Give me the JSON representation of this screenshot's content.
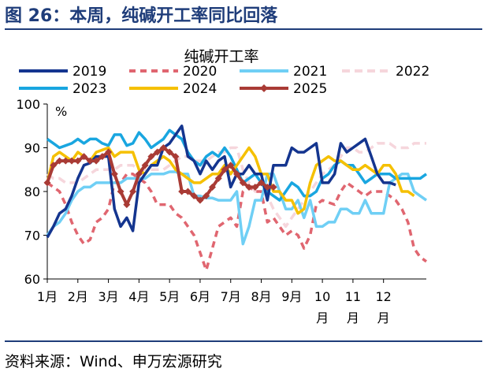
{
  "header": {
    "figure_title": "图 26：本周，纯碱开工率同比回落"
  },
  "footer": {
    "source": "资料来源：Wind、申万宏源研究"
  },
  "chart_data": {
    "type": "line",
    "title": "纯碱开工率",
    "unit": "%",
    "ylim": [
      60,
      100
    ],
    "yticks": [
      60,
      70,
      80,
      90,
      100
    ],
    "xlim": [
      0,
      12.4
    ],
    "xticks": [
      {
        "pos": 0,
        "label": "1月"
      },
      {
        "pos": 1,
        "label": "2月"
      },
      {
        "pos": 2,
        "label": "3月"
      },
      {
        "pos": 3,
        "label": "4月"
      },
      {
        "pos": 4,
        "label": "5月"
      },
      {
        "pos": 5,
        "label": "6月"
      },
      {
        "pos": 6,
        "label": "7月"
      },
      {
        "pos": 7,
        "label": "8月"
      },
      {
        "pos": 8,
        "label": "9月"
      },
      {
        "pos": 9,
        "label": "10月"
      },
      {
        "pos": 10,
        "label": "11月"
      },
      {
        "pos": 11,
        "label": "12月"
      }
    ],
    "grid": false,
    "legend_position": "top",
    "series": [
      {
        "name": "2019",
        "color": "#14358f",
        "dash": "solid",
        "width": 3.5,
        "x": [
          0.0,
          0.2,
          0.4,
          0.6,
          0.8,
          1.0,
          1.2,
          1.4,
          1.6,
          1.8,
          2.0,
          2.2,
          2.4,
          2.6,
          2.8,
          3.0,
          3.2,
          3.4,
          3.6,
          3.8,
          4.0,
          4.2,
          4.4,
          4.6,
          4.8,
          5.0,
          5.2,
          5.4,
          5.6,
          5.8,
          6.0,
          6.2,
          6.4,
          6.6,
          6.8,
          7.0,
          7.2,
          7.4,
          7.6,
          7.8,
          8.0,
          8.2,
          8.4,
          8.6,
          8.8,
          9.0,
          9.2,
          9.4,
          9.6,
          9.8,
          10.0,
          10.2,
          10.4,
          10.6,
          10.8,
          11.0,
          11.2,
          11.4
        ],
        "y": [
          69.5,
          72,
          75,
          76,
          79,
          83,
          86,
          86.5,
          88,
          88,
          88,
          76,
          72,
          74,
          71,
          82,
          84,
          86,
          86,
          90,
          91,
          93,
          95,
          88,
          87,
          84,
          87,
          85,
          87,
          88,
          81,
          84,
          84,
          86,
          84,
          84,
          78,
          86,
          86,
          86,
          90,
          89,
          89,
          90,
          91,
          82,
          82,
          84,
          91,
          89,
          90,
          91,
          92,
          88,
          84,
          82,
          82,
          81.5
        ]
      },
      {
        "name": "2020",
        "color": "#e06670",
        "dash": "8,6",
        "width": 3.5,
        "x": [
          0.0,
          0.2,
          0.4,
          0.6,
          0.8,
          1.0,
          1.2,
          1.4,
          1.6,
          1.8,
          2.0,
          2.2,
          2.4,
          2.6,
          2.8,
          3.0,
          3.2,
          3.4,
          3.6,
          3.8,
          4.0,
          4.2,
          4.4,
          4.6,
          4.8,
          5.0,
          5.2,
          5.4,
          5.6,
          5.8,
          6.0,
          6.2,
          6.4,
          6.6,
          6.8,
          7.0,
          7.2,
          7.4,
          7.6,
          7.8,
          8.0,
          8.2,
          8.4,
          8.6,
          8.8,
          9.0,
          9.2,
          9.4,
          9.6,
          9.8,
          10.0,
          10.2,
          10.4,
          10.6,
          10.8,
          11.0,
          11.2,
          11.4,
          11.6,
          11.8,
          12.0,
          12.2,
          12.4
        ],
        "y": [
          82,
          81,
          80,
          77,
          73,
          70,
          68,
          69,
          73,
          74,
          76,
          82,
          82,
          84,
          84,
          83,
          82,
          80,
          77,
          77,
          77,
          75,
          74,
          72,
          70,
          66,
          62,
          67,
          72,
          73,
          74,
          72,
          80,
          81,
          80,
          80,
          73,
          74,
          72,
          70,
          71,
          70,
          67,
          70,
          77,
          78,
          77.5,
          77,
          80,
          82,
          81,
          80,
          79,
          80,
          80,
          80,
          79,
          78,
          76,
          73,
          67,
          65,
          64
        ]
      },
      {
        "name": "2021",
        "color": "#6fcff5",
        "dash": "solid",
        "width": 3.5,
        "x": [
          0.0,
          0.2,
          0.4,
          0.6,
          0.8,
          1.0,
          1.2,
          1.4,
          1.6,
          1.8,
          2.0,
          2.2,
          2.4,
          2.6,
          2.8,
          3.0,
          3.2,
          3.4,
          3.6,
          3.8,
          4.0,
          4.2,
          4.4,
          4.6,
          4.8,
          5.0,
          5.2,
          5.4,
          5.6,
          5.8,
          6.0,
          6.2,
          6.4,
          6.6,
          6.8,
          7.0,
          7.2,
          7.4,
          7.6,
          7.8,
          8.0,
          8.2,
          8.4,
          8.6,
          8.8,
          9.0,
          9.2,
          9.4,
          9.6,
          9.8,
          10.0,
          10.2,
          10.4,
          10.6,
          10.8,
          11.0,
          11.2,
          11.4,
          11.6,
          11.8,
          12.0,
          12.2,
          12.4
        ],
        "y": [
          70,
          72,
          73,
          75,
          78,
          80,
          81,
          81,
          82,
          82,
          82,
          82,
          82,
          83,
          83,
          83,
          83,
          84,
          84,
          84,
          84.5,
          84.5,
          84,
          84,
          79,
          79,
          78.5,
          78.5,
          78,
          78,
          78,
          80,
          68,
          72,
          78,
          78,
          84,
          84,
          80,
          76,
          76,
          78,
          74,
          78,
          72,
          72,
          73,
          73,
          76,
          76,
          75,
          75,
          78,
          75,
          75,
          75,
          82,
          83,
          84,
          84,
          80,
          79,
          78
        ]
      },
      {
        "name": "2022",
        "color": "#f6d6dc",
        "dash": "10,6",
        "width": 3.5,
        "x": [
          0.0,
          0.2,
          0.4,
          0.6,
          0.8,
          1.0,
          1.2,
          1.4,
          1.6,
          1.8,
          2.0,
          2.2,
          2.4,
          2.6,
          2.8,
          3.0,
          3.2,
          3.4,
          3.6,
          3.8,
          4.0,
          4.2,
          4.4,
          4.6,
          4.8,
          5.0,
          5.2,
          5.4,
          5.6,
          5.8,
          6.0,
          6.2,
          6.4,
          6.6,
          6.8,
          7.0,
          7.2,
          7.4,
          7.6,
          7.8,
          8.0,
          8.2,
          8.4,
          8.6,
          8.8,
          9.0,
          9.2,
          9.4,
          9.6,
          9.8,
          10.0,
          10.2,
          10.4,
          10.6,
          10.8,
          11.0,
          11.2,
          11.4,
          11.6,
          11.8,
          12.0,
          12.2,
          12.4
        ],
        "y": [
          84,
          83,
          83,
          82,
          82,
          82,
          83,
          84,
          85,
          85,
          85,
          85,
          86,
          86,
          86,
          85,
          85,
          85,
          85,
          85,
          86,
          87,
          88,
          88,
          87,
          87,
          87,
          88,
          89,
          89,
          90,
          90,
          85,
          82,
          80,
          80,
          79,
          76,
          74,
          72,
          74,
          76,
          78,
          80,
          82,
          84,
          85,
          86,
          88,
          90,
          90,
          89,
          89,
          90,
          91,
          91,
          91,
          90,
          90,
          90,
          91,
          91,
          91
        ]
      },
      {
        "name": "2023",
        "color": "#19a6e0",
        "dash": "solid",
        "width": 3.5,
        "x": [
          0.0,
          0.2,
          0.4,
          0.6,
          0.8,
          1.0,
          1.2,
          1.4,
          1.6,
          1.8,
          2.0,
          2.2,
          2.4,
          2.6,
          2.8,
          3.0,
          3.2,
          3.4,
          3.6,
          3.8,
          4.0,
          4.2,
          4.4,
          4.6,
          4.8,
          5.0,
          5.2,
          5.4,
          5.6,
          5.8,
          6.0,
          6.2,
          6.4,
          6.6,
          6.8,
          7.0,
          7.2,
          7.4,
          7.6,
          7.8,
          8.0,
          8.2,
          8.4,
          8.6,
          8.8,
          9.0,
          9.2,
          9.4,
          9.6,
          9.8,
          10.0,
          10.2,
          10.4,
          10.6,
          10.8,
          11.0,
          11.2,
          11.4,
          11.6,
          11.8,
          12.0,
          12.2,
          12.4
        ],
        "y": [
          92,
          91,
          90,
          90.5,
          91,
          92,
          91,
          92,
          92,
          91,
          90.5,
          93,
          93,
          90.5,
          91,
          93.5,
          92,
          90,
          91,
          92,
          94,
          93,
          92,
          89,
          87,
          86,
          88,
          89,
          88,
          90,
          88,
          85,
          82,
          83,
          84,
          82,
          80,
          79,
          78,
          80,
          82,
          81,
          79,
          79,
          80,
          83,
          84,
          86,
          87,
          86,
          86,
          84,
          82,
          83,
          84,
          84,
          84,
          83,
          83,
          83,
          83,
          83,
          84
        ]
      },
      {
        "name": "2024",
        "color": "#f5c000",
        "dash": "solid",
        "width": 3.5,
        "x": [
          0.0,
          0.2,
          0.4,
          0.6,
          0.8,
          1.0,
          1.2,
          1.4,
          1.6,
          1.8,
          2.0,
          2.2,
          2.4,
          2.6,
          2.8,
          3.0,
          3.2,
          3.4,
          3.6,
          3.8,
          4.0,
          4.2,
          4.4,
          4.6,
          4.8,
          5.0,
          5.2,
          5.4,
          5.6,
          5.8,
          6.0,
          6.2,
          6.4,
          6.6,
          6.8,
          7.0,
          7.2,
          7.4,
          7.6,
          7.8,
          8.0,
          8.2,
          8.4,
          8.6,
          8.8,
          9.0,
          9.2,
          9.4,
          9.6,
          9.8,
          10.0,
          10.2,
          10.4,
          10.6,
          10.8,
          11.0,
          11.2,
          11.4,
          11.6,
          11.8,
          12.0
        ],
        "y": [
          82,
          88,
          89,
          88,
          87,
          89,
          88,
          87,
          89,
          89.5,
          90,
          88,
          89,
          89,
          89,
          85,
          84,
          86,
          87,
          88,
          87,
          85,
          84,
          83,
          82,
          82,
          83,
          84,
          84,
          86,
          84,
          86,
          88,
          90,
          88,
          84,
          84,
          80,
          80,
          78,
          78,
          75,
          76,
          82,
          86,
          87,
          88,
          87,
          87,
          86,
          85,
          85,
          86,
          85,
          84,
          86,
          86,
          84,
          80,
          80,
          79
        ]
      },
      {
        "name": "2025",
        "color": "#a93b35",
        "dash": "solid",
        "width": 4,
        "markers": true,
        "x": [
          0.0,
          0.2,
          0.4,
          0.6,
          0.8,
          1.0,
          1.2,
          1.4,
          1.6,
          1.8,
          2.0,
          2.2,
          2.4,
          2.6,
          2.8,
          3.0,
          3.2,
          3.4,
          3.6,
          3.8,
          4.0,
          4.2,
          4.4,
          4.6,
          4.8,
          5.0,
          5.2,
          5.4,
          5.6,
          5.8,
          6.0,
          6.2,
          6.4,
          6.6,
          6.8,
          7.0,
          7.2,
          7.4
        ],
        "y": [
          82,
          86,
          87,
          87,
          87,
          87,
          88,
          87,
          87,
          88,
          89,
          84,
          80,
          77,
          80,
          84,
          86,
          88,
          89,
          90,
          89,
          88,
          80,
          80,
          79,
          78,
          79,
          81,
          83,
          85,
          86,
          84,
          82,
          81,
          81,
          82,
          81,
          81
        ]
      }
    ]
  }
}
